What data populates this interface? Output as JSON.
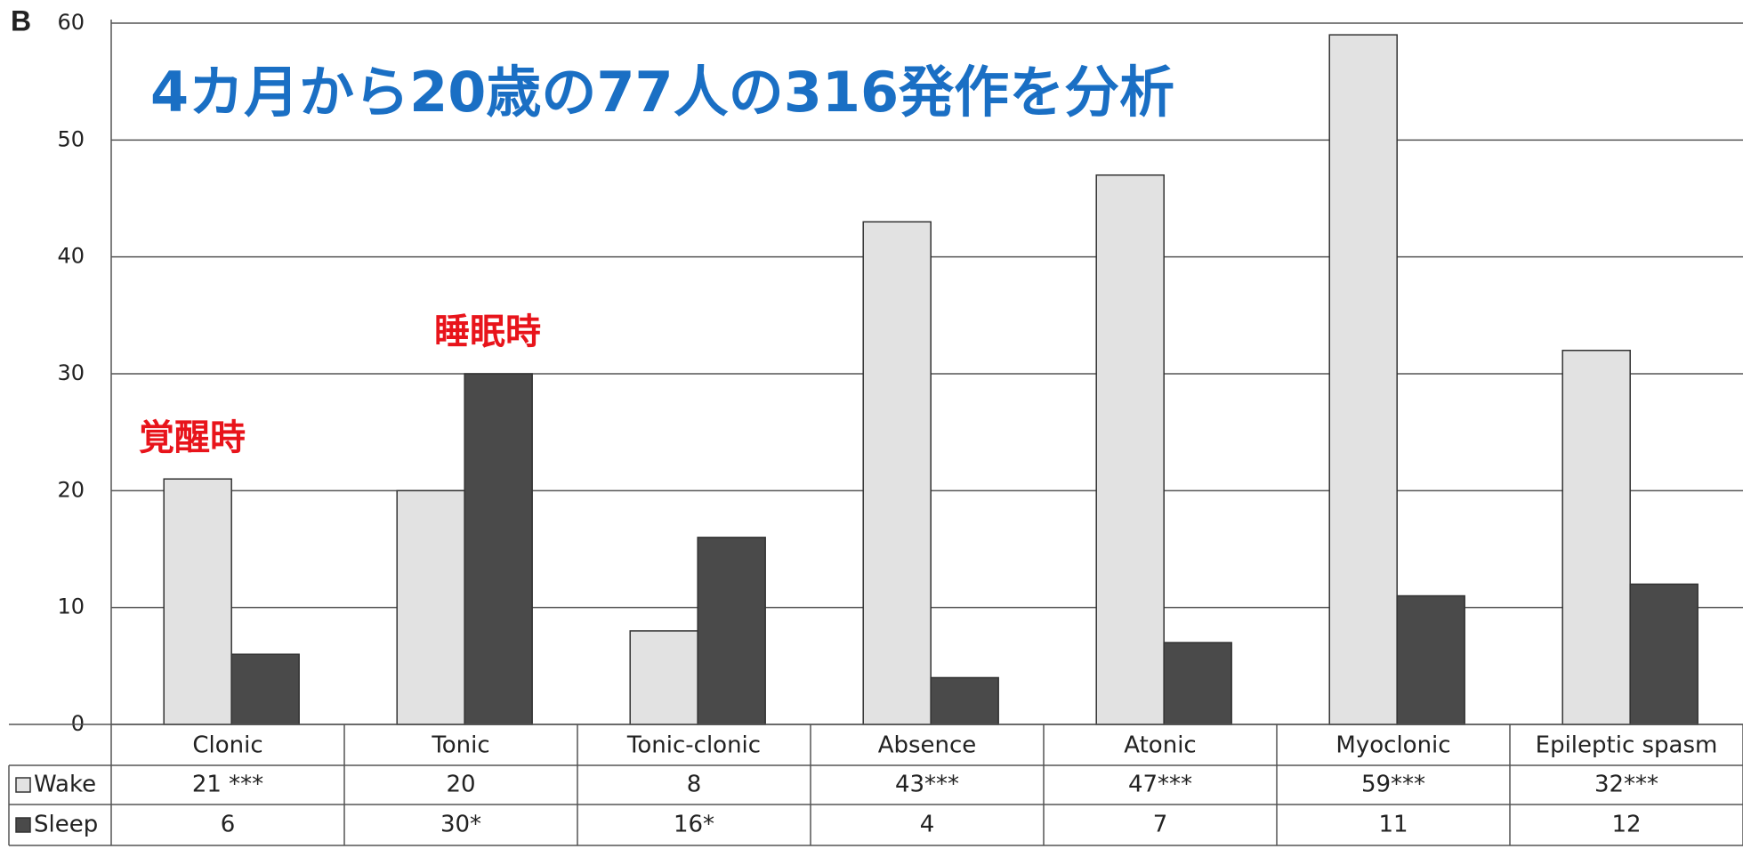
{
  "chart_data": {
    "type": "bar",
    "panel_label": "B",
    "title": "4カ月から20歳の77人の316発作を分析",
    "annotations": [
      "覚醒時",
      "睡眠時"
    ],
    "categories": [
      "Clonic",
      "Tonic",
      "Tonic-clonic",
      "Absence",
      "Atonic",
      "Myoclonic",
      "Epileptic spasm"
    ],
    "series": [
      {
        "name": "Wake",
        "color": "#e2e2e2",
        "values": [
          21,
          20,
          8,
          43,
          47,
          59,
          32
        ],
        "value_labels": [
          "21 ***",
          "20",
          "8",
          "43***",
          "47***",
          "59***",
          "32***"
        ]
      },
      {
        "name": "Sleep",
        "color": "#4a4a4a",
        "values": [
          6,
          30,
          16,
          4,
          7,
          11,
          12
        ],
        "value_labels": [
          "6",
          "30*",
          "16*",
          "4",
          "7",
          "11",
          "12"
        ]
      }
    ],
    "ylim": [
      0,
      60
    ],
    "yticks": [
      0,
      10,
      20,
      30,
      40,
      50,
      60
    ],
    "grid": true
  }
}
